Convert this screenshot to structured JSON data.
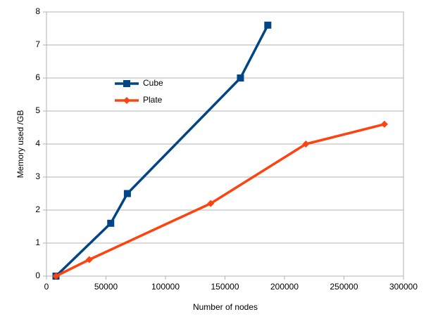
{
  "chart_data": {
    "type": "line",
    "xlabel": "Number of nodes",
    "ylabel": "Memory used /GB",
    "series": [
      {
        "name": "Cube",
        "color": "#004586",
        "marker": "square",
        "x": [
          8000,
          54000,
          68000,
          163000,
          186000
        ],
        "values": [
          0,
          1.6,
          2.5,
          6.0,
          7.6
        ]
      },
      {
        "name": "Plate",
        "color": "#ff420e",
        "marker": "diamond",
        "x": [
          8000,
          36000,
          138000,
          218000,
          284000
        ],
        "values": [
          0,
          0.5,
          2.2,
          4.0,
          4.6
        ]
      }
    ],
    "xlim": [
      0,
      300000
    ],
    "xticks": [
      0,
      50000,
      100000,
      150000,
      200000,
      250000,
      300000
    ],
    "ylim": [
      0,
      8
    ],
    "yticks": [
      0,
      1,
      2,
      3,
      4,
      5,
      6,
      7,
      8
    ],
    "grid": true,
    "legend": "upper left"
  }
}
